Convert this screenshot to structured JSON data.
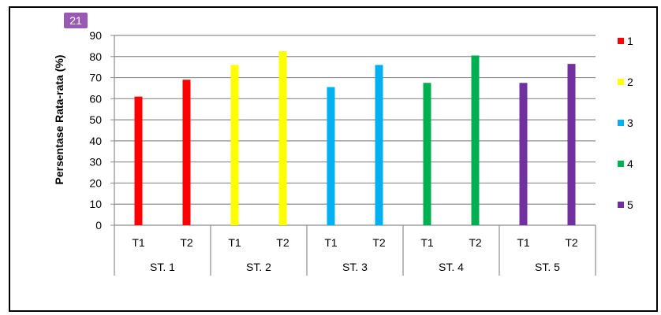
{
  "badge": "21",
  "chart_data": {
    "type": "bar",
    "ylabel": "Persentase Rata-rata (%)",
    "ylim": [
      0,
      90
    ],
    "yticks": [
      0,
      10,
      20,
      30,
      40,
      50,
      60,
      70,
      80,
      90
    ],
    "grid": true,
    "legend_position": "right",
    "groups": [
      {
        "name": "ST. 1",
        "categories": [
          "T1",
          "T2"
        ],
        "values": [
          61,
          69
        ],
        "color": "#ff0000"
      },
      {
        "name": "ST. 2",
        "categories": [
          "T1",
          "T2"
        ],
        "values": [
          76,
          82.5
        ],
        "color": "#ffff00"
      },
      {
        "name": "ST. 3",
        "categories": [
          "T1",
          "T2"
        ],
        "values": [
          65.5,
          76
        ],
        "color": "#00b0f0"
      },
      {
        "name": "ST. 4",
        "categories": [
          "T1",
          "T2"
        ],
        "values": [
          67.5,
          80.5
        ],
        "color": "#00b050"
      },
      {
        "name": "ST. 5",
        "categories": [
          "T1",
          "T2"
        ],
        "values": [
          67.5,
          76.5
        ],
        "color": "#7030a0"
      }
    ],
    "legend": [
      {
        "label": "1",
        "color": "#ff0000"
      },
      {
        "label": "2",
        "color": "#ffff00"
      },
      {
        "label": "3",
        "color": "#00b0f0"
      },
      {
        "label": "4",
        "color": "#00b050"
      },
      {
        "label": "5",
        "color": "#7030a0"
      }
    ]
  }
}
